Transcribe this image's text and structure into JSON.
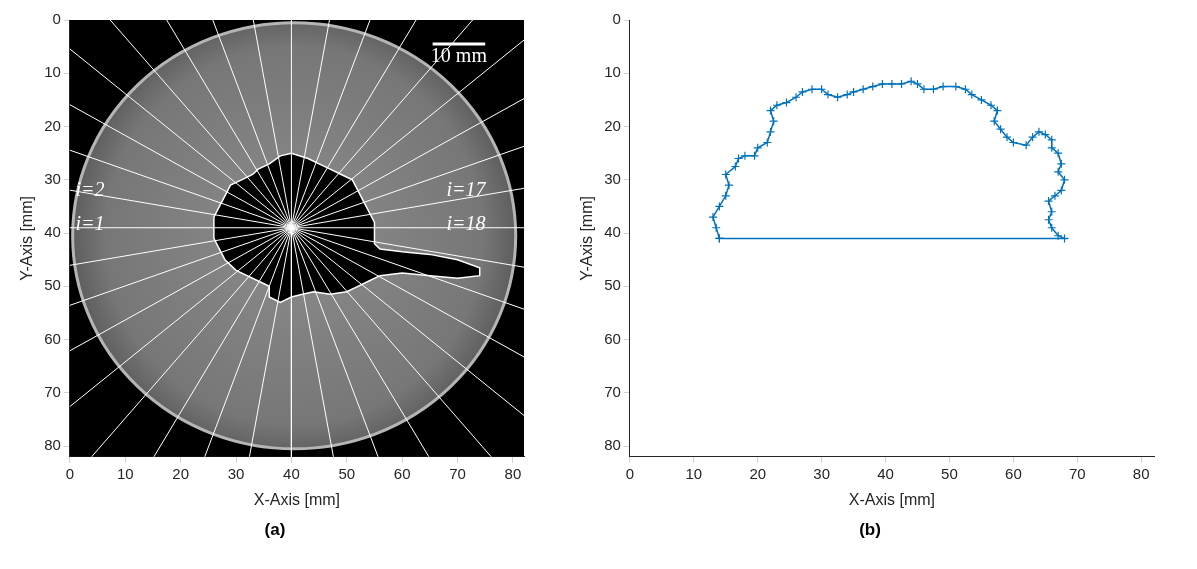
{
  "chart_data": [
    {
      "type": "image",
      "panel": "(a)",
      "x_label": "X-Axis [mm]",
      "y_label": "Y-Axis [mm]",
      "xlim": [
        0,
        82
      ],
      "ylim": [
        82,
        0
      ],
      "xticks": [
        0,
        10,
        20,
        30,
        40,
        50,
        60,
        70,
        80
      ],
      "yticks": [
        0,
        10,
        20,
        30,
        40,
        50,
        60,
        70,
        80
      ],
      "grid": false,
      "disk": {
        "center": [
          40.5,
          40.5
        ],
        "radius": 40
      },
      "rays": {
        "center": [
          40,
          39
        ],
        "color": "#ffffff",
        "angles": [
          0,
          10,
          20,
          30,
          40,
          50,
          60,
          70,
          80,
          90,
          100,
          110,
          120,
          130,
          140,
          150,
          160,
          170,
          180,
          190,
          200,
          210,
          220,
          230,
          240,
          250,
          260,
          270,
          280,
          290,
          300,
          310,
          320,
          330,
          340,
          350
        ]
      },
      "outline": {
        "color": "#ffffff",
        "x": [
          36,
          38,
          40,
          43,
          45,
          47,
          49,
          51,
          52,
          53,
          54,
          55,
          55,
          55,
          56,
          60,
          65,
          70,
          74,
          74,
          70,
          65,
          60,
          56,
          54,
          52,
          50,
          47,
          44,
          42,
          40,
          38,
          36,
          36,
          34,
          32,
          30,
          28,
          27,
          26,
          26,
          26,
          27,
          28,
          29,
          31,
          33,
          34,
          36
        ],
        "y": [
          27,
          25.5,
          25,
          26,
          27,
          28,
          29,
          30,
          32,
          34,
          36,
          38,
          40,
          42,
          43,
          43.5,
          44,
          45,
          46.5,
          48,
          48.5,
          48,
          47.5,
          48,
          49,
          50,
          51,
          51.5,
          51,
          51.5,
          52,
          53,
          52,
          50,
          49,
          48,
          47,
          45,
          43,
          41,
          39,
          37,
          35,
          33,
          31,
          30,
          29,
          28,
          27
        ]
      },
      "scale_bar": {
        "x": [
          65.5,
          75
        ],
        "y": 4.5,
        "label": "10 mm"
      },
      "annotations": [
        {
          "text": "i=2",
          "x": 1,
          "y": 32
        },
        {
          "text": "i=1",
          "x": 1,
          "y": 38.5
        },
        {
          "text": "i=17",
          "x": 68,
          "y": 32
        },
        {
          "text": "i=18",
          "x": 68,
          "y": 38.5
        }
      ]
    },
    {
      "type": "line",
      "panel": "(b)",
      "x_label": "X-Axis [mm]",
      "y_label": "Y-Axis [mm]",
      "xlim": [
        0,
        82
      ],
      "ylim": [
        82,
        0
      ],
      "xticks": [
        0,
        10,
        20,
        30,
        40,
        50,
        60,
        70,
        80
      ],
      "yticks": [
        0,
        10,
        20,
        30,
        40,
        50,
        60,
        70,
        80
      ],
      "grid": false,
      "series": [
        {
          "color": "#0072bd",
          "marker": "plus",
          "line_style": "solid",
          "x": [
            14,
            13.5,
            13,
            14,
            15,
            15.5,
            15,
            16.5,
            17,
            18,
            19.5,
            20,
            21.5,
            22,
            22.5,
            22,
            23,
            24.5,
            26,
            27,
            28.5,
            30,
            31,
            32.5,
            34,
            35,
            36.5,
            38,
            39.5,
            41,
            42.5,
            44,
            45,
            46,
            47.5,
            49,
            51,
            52.5,
            53.5,
            55,
            56.5,
            57.5,
            57,
            58,
            59,
            60,
            62,
            63,
            64,
            65,
            66,
            66,
            67,
            67.5,
            67,
            68,
            67.5,
            66.5,
            65.5,
            66,
            65.5,
            66,
            67,
            68,
            14
          ],
          "values": [
            41,
            39,
            37,
            35,
            33,
            31,
            29,
            27.5,
            26,
            25.5,
            25.5,
            24,
            23,
            21,
            19,
            17,
            16,
            15.5,
            14.5,
            13.5,
            13,
            13,
            14,
            14.5,
            14,
            13.5,
            13,
            12.5,
            12,
            12,
            12,
            11.5,
            12,
            13,
            13,
            12.5,
            12.5,
            13,
            14,
            15,
            16,
            17,
            19,
            20.5,
            22,
            23,
            23.5,
            22,
            21,
            21.5,
            22.5,
            24,
            25,
            27,
            28.5,
            30,
            32,
            33,
            34,
            36,
            37.5,
            39,
            40.5,
            41,
            41
          ]
        }
      ]
    }
  ]
}
